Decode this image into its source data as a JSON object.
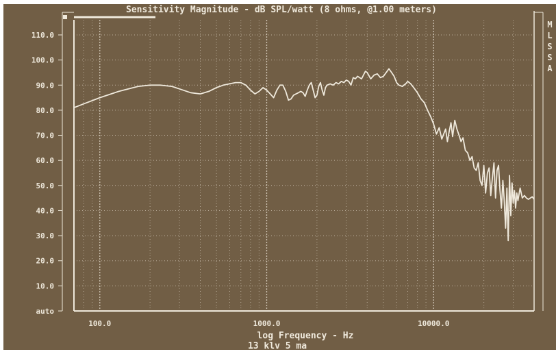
{
  "colors": {
    "background": "#715e45",
    "foreground": "#efe9dc",
    "grid": "#d9cfbf"
  },
  "chart_data": {
    "type": "line",
    "title": "Sensitivity Magnitude - dB SPL/watt (8 ohms, @1.00 meters)",
    "xlabel": "log Frequency - Hz",
    "xlabel_sub": "13 klv 5 ma",
    "x_scale": "log",
    "xlim": [
      70,
      40000
    ],
    "ylim": [
      0,
      116
    ],
    "grid": true,
    "y_ticks": [
      {
        "value": 110,
        "label": "110.0"
      },
      {
        "value": 100,
        "label": "100.0"
      },
      {
        "value": 90,
        "label": "90.0"
      },
      {
        "value": 80,
        "label": "80.0"
      },
      {
        "value": 70,
        "label": "70.0"
      },
      {
        "value": 60,
        "label": "60.0"
      },
      {
        "value": 50,
        "label": "50.0"
      },
      {
        "value": 40,
        "label": "40.0"
      },
      {
        "value": 30,
        "label": "30.0"
      },
      {
        "value": 20,
        "label": "20.0"
      },
      {
        "value": 10,
        "label": "10.0"
      },
      {
        "value": 0,
        "label": "auto"
      }
    ],
    "x_ticks": [
      {
        "value": 100,
        "label": "100.0"
      },
      {
        "value": 1000,
        "label": "1000.0"
      },
      {
        "value": 10000,
        "label": "10000.0"
      }
    ],
    "side_labels": [
      "M",
      "L",
      "S",
      "S",
      "A"
    ],
    "series": [
      {
        "x": [
          70,
          80,
          100,
          130,
          170,
          200,
          230,
          270,
          300,
          350,
          400,
          450,
          500,
          550,
          600,
          650,
          700,
          750,
          800,
          850,
          900,
          950,
          1000,
          1050,
          1100,
          1150,
          1200,
          1250,
          1300,
          1350,
          1400,
          1450,
          1500,
          1550,
          1600,
          1650,
          1700,
          1750,
          1800,
          1850,
          1900,
          1950,
          2000,
          2050,
          2100,
          2150,
          2200,
          2250,
          2300,
          2400,
          2500,
          2600,
          2700,
          2800,
          2900,
          3000,
          3100,
          3200,
          3300,
          3400,
          3500,
          3600,
          3700,
          3800,
          3900,
          4000,
          4200,
          4400,
          4600,
          4800,
          5000,
          5200,
          5400,
          5600,
          5800,
          6000,
          6200,
          6500,
          6800,
          7000,
          7300,
          7600,
          8000,
          8400,
          8800,
          9200,
          9600,
          10000,
          10400,
          10800,
          11200,
          11500,
          11800,
          12100,
          12400,
          12700,
          13000,
          13400,
          13800,
          14200,
          14600,
          15000,
          15500,
          16000,
          16500,
          17000,
          17500,
          18000,
          18500,
          19000,
          19500,
          20000,
          20500,
          21000,
          21500,
          22000,
          22500,
          23000,
          23500,
          24000,
          24500,
          25000,
          25500,
          26000,
          26500,
          27000,
          27500,
          28000,
          28500,
          29000,
          29500,
          30000,
          30500,
          31000,
          31500,
          32000,
          33000,
          34000,
          35000,
          36000,
          37000,
          38000,
          39000,
          40000
        ],
        "y": [
          81,
          82.5,
          85,
          87.5,
          89.5,
          90,
          90,
          89.5,
          88.5,
          87,
          86.5,
          87.5,
          89,
          90,
          90.5,
          91,
          91,
          90,
          88,
          86.5,
          87.5,
          89,
          88,
          86.5,
          85,
          88,
          90,
          90,
          87.5,
          84,
          84.5,
          86,
          86.5,
          87,
          87.5,
          87,
          85.5,
          88,
          90,
          91,
          88,
          85,
          86,
          89.5,
          91,
          88,
          86,
          89,
          90,
          90.5,
          90,
          91,
          90.5,
          91.5,
          91,
          92,
          91.5,
          90,
          93,
          92.5,
          93.5,
          93,
          92.5,
          94,
          95.5,
          95,
          92.5,
          94,
          94.5,
          93,
          93.5,
          95,
          96.5,
          95,
          93.5,
          91,
          90,
          89.5,
          90.5,
          91.5,
          90.5,
          89,
          87,
          84.5,
          83,
          80,
          77.5,
          74.5,
          70.5,
          73,
          68.5,
          70.5,
          72.5,
          67.5,
          71.5,
          75,
          69.5,
          76,
          72.5,
          70,
          67.5,
          69,
          64,
          63,
          60,
          61.5,
          57,
          56,
          59,
          52,
          50,
          58,
          47,
          55,
          57,
          46,
          53,
          59,
          45,
          56,
          58,
          48,
          41,
          52,
          44,
          33,
          49,
          28,
          54,
          38,
          51,
          43,
          48,
          41,
          47,
          44,
          49,
          45,
          46,
          45,
          44.5,
          45,
          45.5,
          44.5
        ]
      }
    ]
  }
}
